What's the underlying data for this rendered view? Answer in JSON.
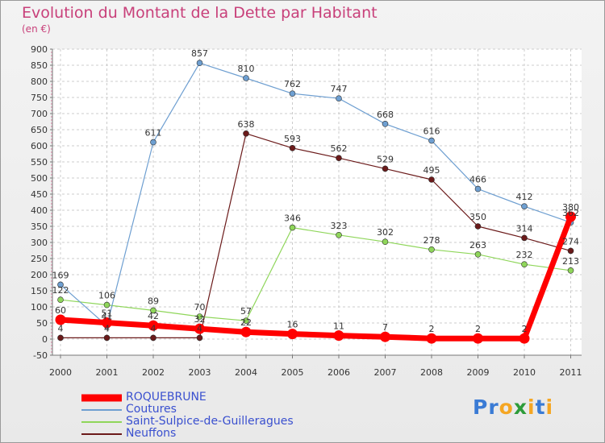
{
  "chart_data": {
    "type": "line",
    "title": "Evolution du Montant de la Dette par Habitant",
    "subtitle": "(en €)",
    "xlabel": "",
    "ylabel": "",
    "categories": [
      "2000",
      "2001",
      "2002",
      "2003",
      "2004",
      "2005",
      "2006",
      "2007",
      "2008",
      "2009",
      "2010",
      "2011"
    ],
    "ylim": [
      -50,
      900
    ],
    "yticks": [
      -50,
      0,
      50,
      100,
      150,
      200,
      250,
      300,
      350,
      400,
      450,
      500,
      550,
      600,
      650,
      700,
      750,
      800,
      850,
      900
    ],
    "grid": true,
    "legend_position": "bottom-left",
    "series": [
      {
        "name": "Neuffons",
        "color": "#6b1a1a",
        "width": 1.2,
        "marker": 3.5,
        "values": [
          4,
          4,
          4,
          4,
          638,
          593,
          562,
          529,
          495,
          350,
          314,
          274
        ],
        "labels": [
          "4",
          "4",
          "4",
          "4",
          "638",
          "593",
          "562",
          "529",
          "495",
          "350",
          "314",
          "274"
        ]
      },
      {
        "name": "Saint-Sulpice-de-Guilleragues",
        "color": "#8fd65a",
        "width": 1.2,
        "marker": 3.5,
        "values": [
          122,
          106,
          89,
          70,
          57,
          346,
          323,
          302,
          278,
          263,
          232,
          213
        ],
        "labels": [
          "122",
          "106",
          "89",
          "70",
          "57",
          "346",
          "323",
          "302",
          "278",
          "263",
          "232",
          "213"
        ]
      },
      {
        "name": "Coutures",
        "color": "#6e9fd1",
        "width": 1.2,
        "marker": 3.5,
        "values": [
          169,
          41,
          611,
          857,
          810,
          762,
          747,
          668,
          616,
          466,
          412,
          362
        ],
        "labels": [
          "169",
          "41",
          "611",
          "857",
          "810",
          "762",
          "747",
          "668",
          "616",
          "466",
          "412",
          "362"
        ]
      },
      {
        "name": "ROQUEBRUNE",
        "color": "#ff0000",
        "width": 7,
        "marker": 6.5,
        "values": [
          60,
          51,
          42,
          32,
          22,
          16,
          11,
          7,
          2,
          2,
          2,
          380
        ],
        "labels": [
          "60",
          "51",
          "42",
          "32",
          "22",
          "16",
          "11",
          "7",
          "2",
          "2",
          "2",
          "380"
        ]
      }
    ]
  },
  "legend": [
    {
      "name": "ROQUEBRUNE",
      "color": "#ff0000"
    },
    {
      "name": "Coutures",
      "color": "#6e9fd1"
    },
    {
      "name": "Saint-Sulpice-de-Guilleragues",
      "color": "#8fd65a"
    },
    {
      "name": "Neuffons",
      "color": "#6b1a1a"
    }
  ],
  "brand": {
    "name": "Proxiti",
    "letters": [
      "P",
      "r",
      "o",
      "x",
      "i",
      "t",
      "i"
    ],
    "colors": [
      "#3a7bd5",
      "#3a7bd5",
      "#f5a623",
      "#2d9c3a",
      "#f5a623",
      "#3a7bd5",
      "#f5a623"
    ]
  }
}
